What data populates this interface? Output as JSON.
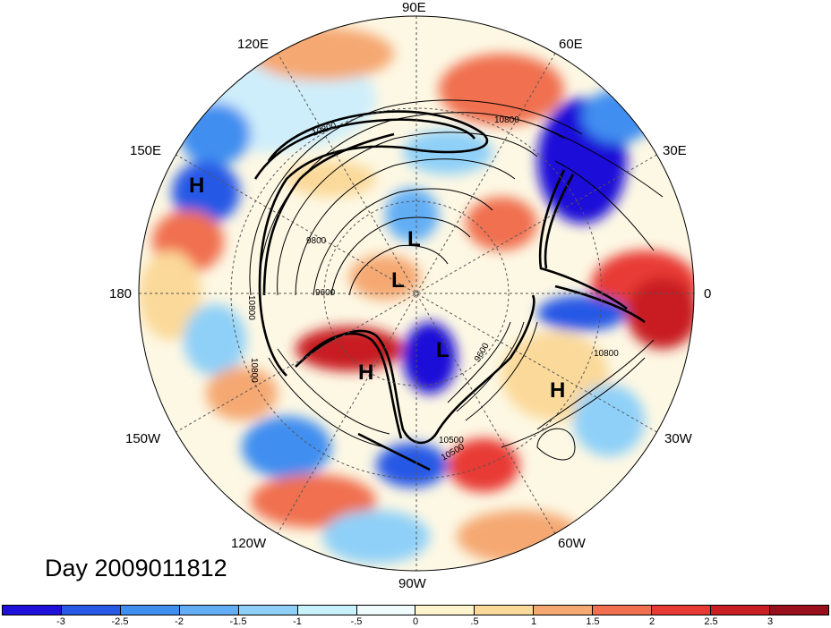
{
  "title": "Day 2009011812",
  "longitude_labels": [
    "90E",
    "60E",
    "30E",
    "0",
    "30W",
    "60W",
    "90W",
    "120W",
    "150W",
    "180",
    "150E",
    "120E"
  ],
  "pressure_centres": [
    "H",
    "L",
    "L",
    "L",
    "H",
    "H"
  ],
  "contour_labels": [
    "10800",
    "10800",
    "9800",
    "9600",
    "9600",
    "10800",
    "10500",
    "10800",
    "10800",
    "10500"
  ],
  "colorbar": {
    "ticks": [
      "-3",
      "-2.5",
      "-2",
      "-1.5",
      "-1",
      "-.5",
      "0",
      ".5",
      "1",
      "1.5",
      "2",
      "2.5",
      "3"
    ],
    "colors": [
      "#1e10d8",
      "#2858e6",
      "#3f8ef0",
      "#62aef5",
      "#8fd0f8",
      "#c8f2fb",
      "#f0fbfd",
      "#fdf3cc",
      "#fbd99a",
      "#f5a872",
      "#f07050",
      "#e83a34",
      "#c81e24",
      "#9a0f1c"
    ]
  }
}
